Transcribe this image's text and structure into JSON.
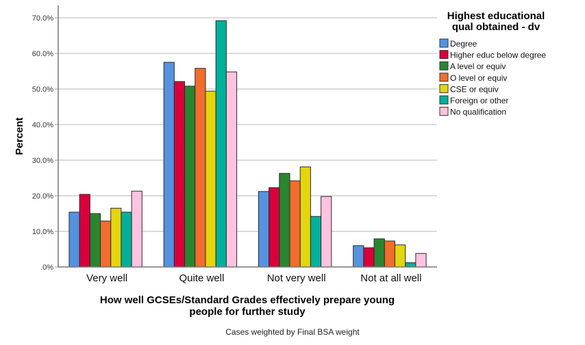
{
  "chart_data": {
    "type": "bar",
    "title": "",
    "xlabel": "How well GCSEs/Standard Grades effectively prepare young people for further study",
    "xlabel_lines": [
      "How well GCSEs/Standard Grades effectively prepare young",
      "people for further study"
    ],
    "ylabel": "Percent",
    "ylim": [
      0,
      70
    ],
    "yticks": [
      0,
      10,
      20,
      30,
      40,
      50,
      60,
      70
    ],
    "ytick_labels": [
      ".0%",
      "10.0%",
      "20.0%",
      "30.0%",
      "40.0%",
      "50.0%",
      "60.0%",
      "70.0%"
    ],
    "grid": true,
    "legend_position": "top-right",
    "legend_title_lines": [
      "Highest educational",
      "qual obtained - dv"
    ],
    "categories": [
      "Very well",
      "Quite well",
      "Not very well",
      "Not at all well"
    ],
    "series": [
      {
        "name": "Degree",
        "color": "#5592e0",
        "values": [
          15.4,
          57.5,
          21.2,
          6.0
        ]
      },
      {
        "name": "Higher educ below degree",
        "color": "#d8003a",
        "values": [
          20.4,
          52.1,
          22.3,
          5.4
        ]
      },
      {
        "name": "A level or equiv",
        "color": "#2a8530",
        "values": [
          15.0,
          50.8,
          26.3,
          7.9
        ]
      },
      {
        "name": "O level or equiv",
        "color": "#f26c2c",
        "values": [
          12.9,
          55.8,
          24.2,
          7.3
        ]
      },
      {
        "name": "CSE or equiv",
        "color": "#e3d50e",
        "values": [
          16.5,
          49.4,
          28.1,
          6.2
        ]
      },
      {
        "name": "Foreign or other",
        "color": "#00b09a",
        "values": [
          15.4,
          69.2,
          14.2,
          1.2
        ]
      },
      {
        "name": "No qualification",
        "color": "#ffc3e0",
        "values": [
          21.3,
          54.8,
          19.8,
          3.8
        ]
      }
    ],
    "footnote": "Cases weighted by Final BSA weight"
  }
}
